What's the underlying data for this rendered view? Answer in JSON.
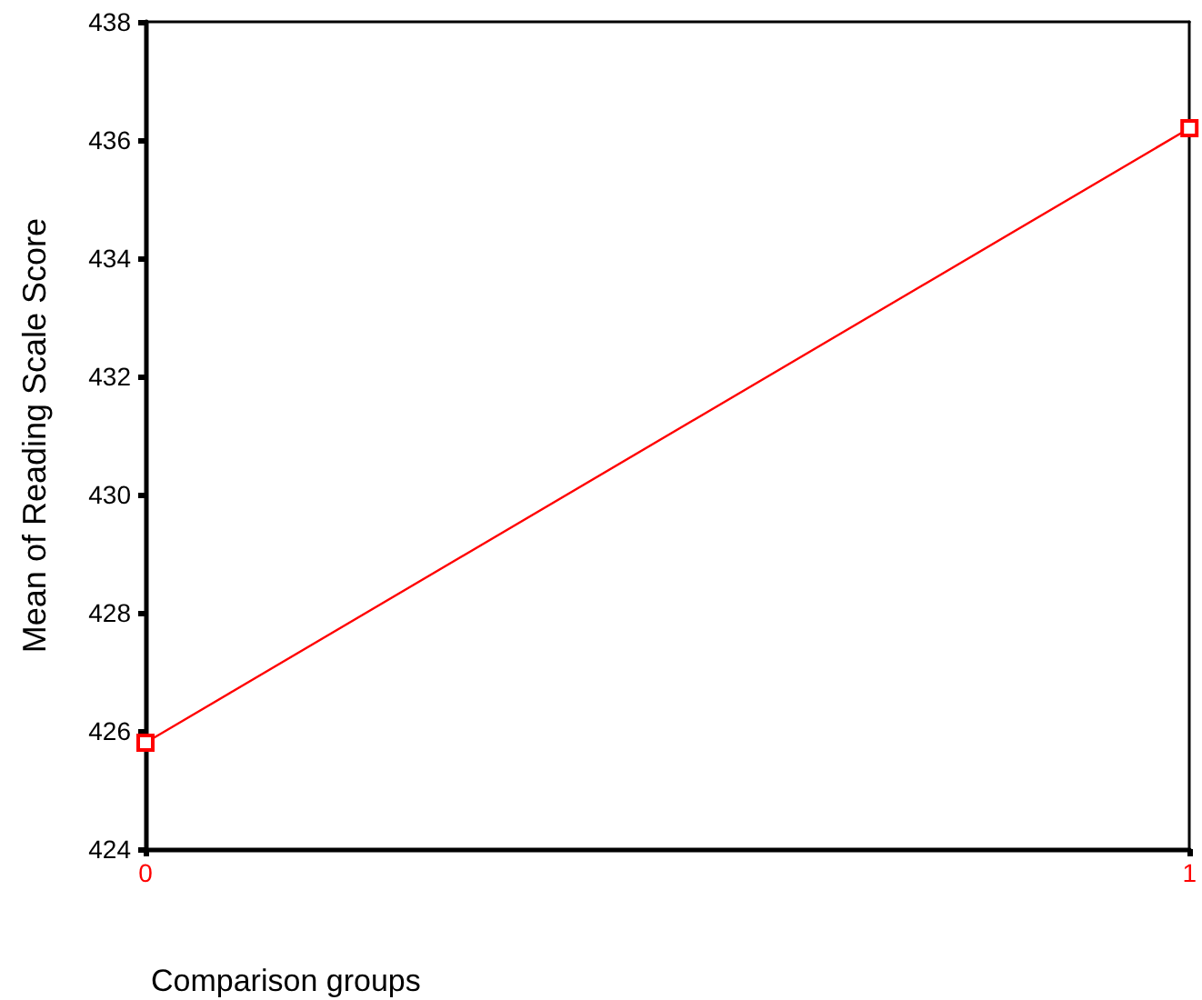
{
  "chart_data": {
    "type": "line",
    "xlabel": "Comparison groups",
    "ylabel": "Mean of Reading Scale Score",
    "categories": [
      "0",
      "1"
    ],
    "series": [
      {
        "color": "#ff0000",
        "values": [
          425.8,
          436.2
        ]
      }
    ],
    "ylim": [
      424,
      438
    ],
    "yticks": [
      424,
      426,
      428,
      430,
      432,
      434,
      436,
      438
    ],
    "marker": "square",
    "line_style": "solid"
  }
}
